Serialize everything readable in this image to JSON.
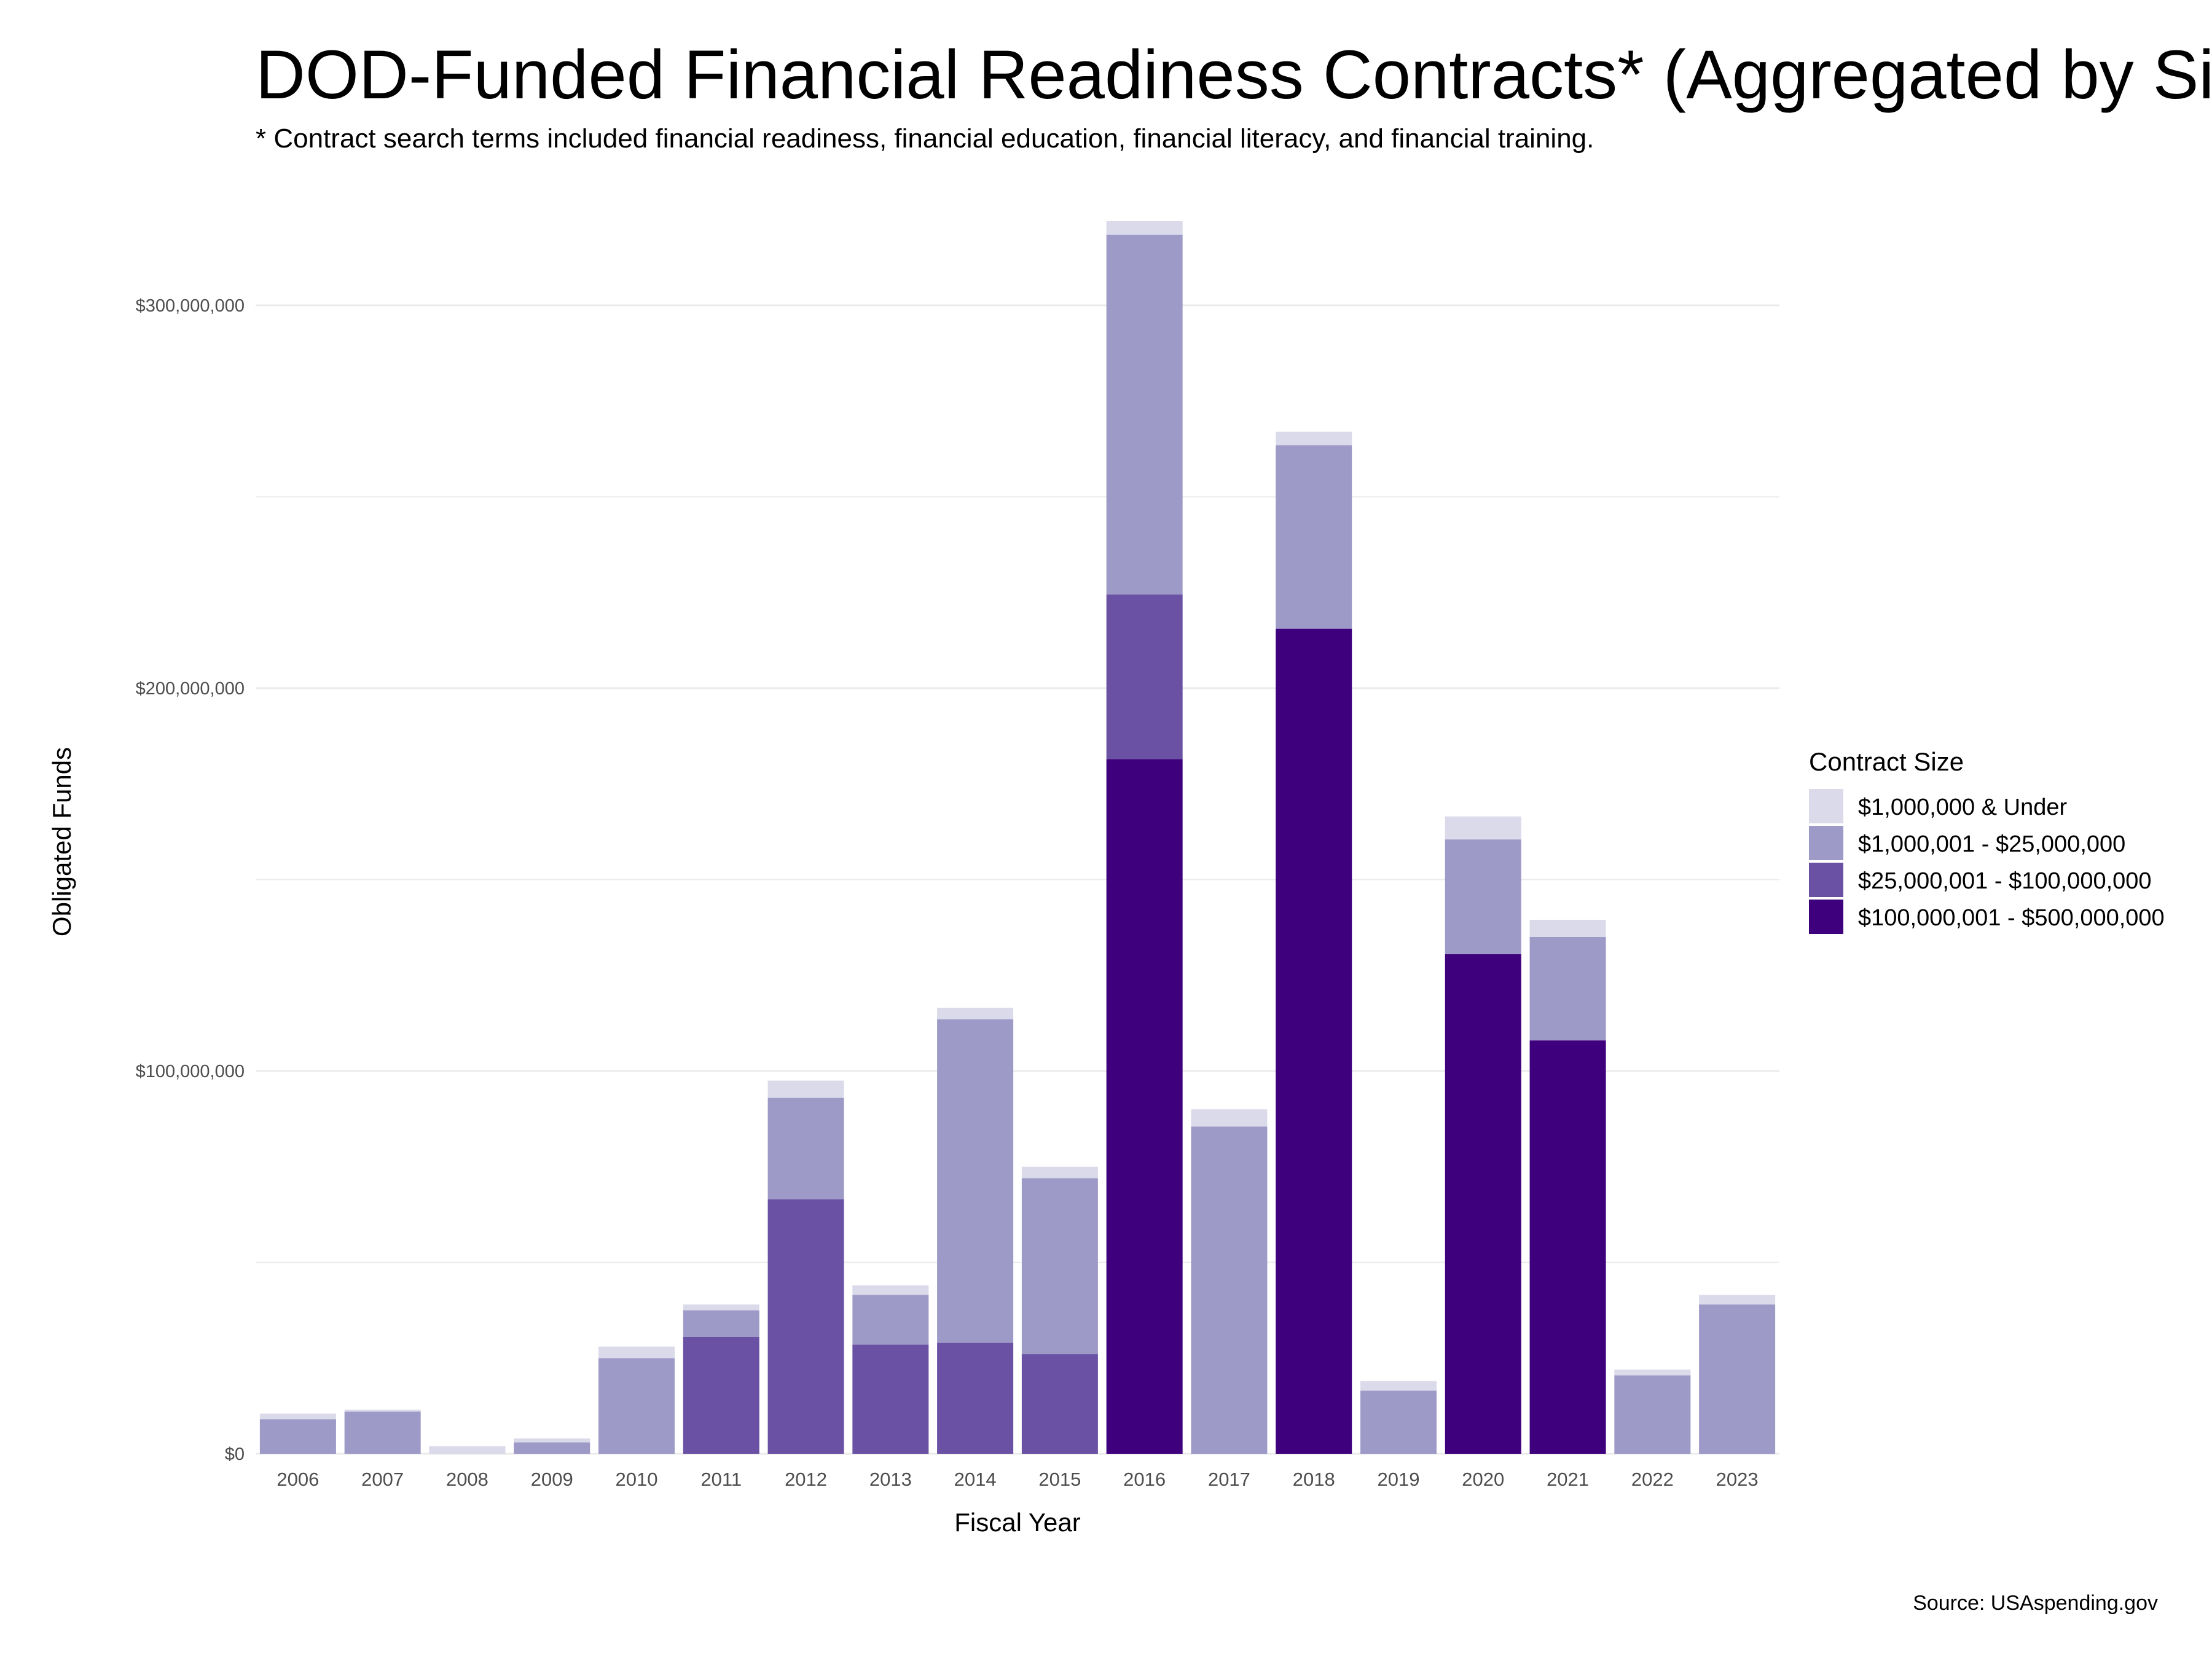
{
  "chart_data": {
    "type": "bar",
    "stacked": true,
    "title": "DOD-Funded Financial Readiness Contracts* (Aggregated by Size)",
    "subtitle": "* Contract search terms included financial readiness, financial education, financial literacy, and financial training.",
    "xlabel": "Fiscal Year",
    "ylabel": "Obligated Funds",
    "caption": "Source: USAspending.gov",
    "legend_title": "Contract Size",
    "legend_position": "right",
    "grid": true,
    "ylim": [
      0,
      322000000
    ],
    "yticks": [
      0,
      100000000,
      200000000,
      300000000
    ],
    "ytick_labels": [
      "$0",
      "$100,000,000",
      "$200,000,000",
      "$300,000,000"
    ],
    "categories": [
      "2006",
      "2007",
      "2008",
      "2009",
      "2010",
      "2011",
      "2012",
      "2013",
      "2014",
      "2015",
      "2016",
      "2017",
      "2018",
      "2019",
      "2020",
      "2021",
      "2022",
      "2023"
    ],
    "series": [
      {
        "name": "$100,000,001 - $500,000,000",
        "color": "#3f007d",
        "values": [
          0,
          0,
          0,
          0,
          0,
          0,
          0,
          0,
          0,
          0,
          181500000,
          0,
          215500000,
          0,
          130500000,
          108000000,
          0,
          0
        ]
      },
      {
        "name": "$25,000,001 - $100,000,000",
        "color": "#6a51a3",
        "values": [
          0,
          0,
          0,
          0,
          0,
          30500000,
          66500000,
          28500000,
          29000000,
          26000000,
          43000000,
          0,
          0,
          0,
          0,
          0,
          0,
          0
        ]
      },
      {
        "name": "$1,000,001 - $25,000,000",
        "color": "#9e9ac8",
        "values": [
          9000000,
          11000000,
          0,
          3000000,
          25000000,
          7000000,
          26500000,
          13000000,
          84500000,
          46000000,
          94000000,
          85500000,
          48000000,
          16500000,
          30000000,
          27000000,
          20500000,
          39000000
        ]
      },
      {
        "name": "$1,000,000 & Under",
        "color": "#dadaeb",
        "values": [
          1500000,
          500000,
          2000000,
          1000000,
          3000000,
          1500000,
          4500000,
          2500000,
          3000000,
          3000000,
          3500000,
          4500000,
          3500000,
          2500000,
          6000000,
          4500000,
          1500000,
          2500000
        ]
      }
    ],
    "legend_order": [
      "$1,000,000 & Under",
      "$1,000,001 - $25,000,000",
      "$25,000,001 - $100,000,000",
      "$100,000,001 - $500,000,000"
    ]
  }
}
